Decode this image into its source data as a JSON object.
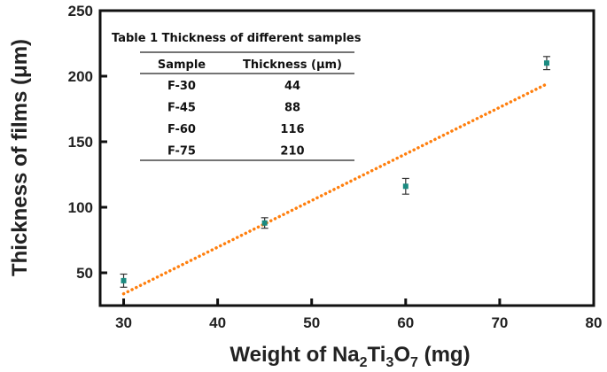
{
  "chart_data": {
    "type": "scatter",
    "xlabel_parts": [
      "Weight of Na",
      "2",
      "Ti",
      "3",
      "O",
      "7",
      " (mg)"
    ],
    "ylabel": "Thickness of films (μm)",
    "xlim": [
      27.5,
      80
    ],
    "ylim": [
      25,
      250
    ],
    "xticks": [
      30,
      40,
      50,
      60,
      70,
      80
    ],
    "yticks": [
      50,
      100,
      150,
      200,
      250
    ],
    "grid": false,
    "points": [
      {
        "x": 30,
        "y": 44,
        "err": 5
      },
      {
        "x": 45,
        "y": 88,
        "err": 4
      },
      {
        "x": 60,
        "y": 116,
        "err": 6
      },
      {
        "x": 75,
        "y": 210,
        "err": 5
      }
    ],
    "fit_line": {
      "x": [
        30,
        75
      ],
      "y": [
        34,
        194
      ]
    },
    "colors": {
      "marker": "#1a8a80",
      "fit": "#ff7f0e",
      "errorbar": "#333333"
    },
    "table": {
      "title": "Table 1 Thickness of different samples",
      "headers": [
        "Sample",
        "Thickness (μm)"
      ],
      "rows": [
        [
          "F-30",
          "44"
        ],
        [
          "F-45",
          "88"
        ],
        [
          "F-60",
          "116"
        ],
        [
          "F-75",
          "210"
        ]
      ]
    }
  }
}
